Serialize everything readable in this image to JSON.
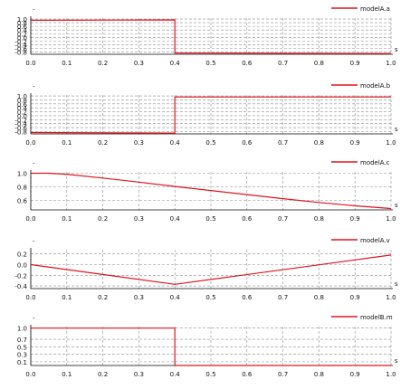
{
  "chart_data": [
    {
      "type": "line",
      "y_unit": "-",
      "x_unit": "s",
      "xlim": [
        0.0,
        1.0
      ],
      "ylim": [
        -0.92,
        1.05
      ],
      "yticks": [
        "1.0",
        "0.8",
        "0.6",
        "0.4",
        "0.2",
        "0.0",
        "-0.2",
        "-0.4",
        "-0.6",
        "-0.8"
      ],
      "ytick_values": [
        1.0,
        0.8,
        0.6,
        0.4,
        0.2,
        0.0,
        -0.2,
        -0.4,
        -0.6,
        -0.8
      ],
      "xticks": [
        "0.0",
        "0.1",
        "0.2",
        "0.3",
        "0.4",
        "0.5",
        "0.6",
        "0.7",
        "0.8",
        "0.9",
        "1.0"
      ],
      "xtick_values": [
        0.0,
        0.1,
        0.2,
        0.3,
        0.4,
        0.5,
        0.6,
        0.7,
        0.8,
        0.9,
        1.0
      ],
      "grid": true,
      "legend_position": "top-right",
      "series": [
        {
          "name": "modelA.a",
          "color": "#e0141e",
          "x": [
            0.0,
            0.4,
            0.4,
            1.0
          ],
          "y": [
            0.93,
            0.95,
            -0.85,
            -0.88
          ]
        }
      ]
    },
    {
      "type": "line",
      "y_unit": "-",
      "x_unit": "s",
      "xlim": [
        0.0,
        1.0
      ],
      "ylim": [
        -0.92,
        1.05
      ],
      "yticks": [
        "1.0",
        "0.8",
        "0.6",
        "0.4",
        "0.2",
        "0.0",
        "-0.2",
        "-0.4",
        "-0.6",
        "-0.8"
      ],
      "ytick_values": [
        1.0,
        0.8,
        0.6,
        0.4,
        0.2,
        0.0,
        -0.2,
        -0.4,
        -0.6,
        -0.8
      ],
      "xticks": [
        "0.0",
        "0.1",
        "0.2",
        "0.3",
        "0.4",
        "0.5",
        "0.6",
        "0.7",
        "0.8",
        "0.9",
        "1.0"
      ],
      "xtick_values": [
        0.0,
        0.1,
        0.2,
        0.3,
        0.4,
        0.5,
        0.6,
        0.7,
        0.8,
        0.9,
        1.0
      ],
      "grid": true,
      "legend_position": "top-right",
      "series": [
        {
          "name": "modelA.b",
          "color": "#e0141e",
          "x": [
            0.0,
            0.4,
            0.4,
            1.0
          ],
          "y": [
            -0.85,
            -0.88,
            0.95,
            0.95
          ]
        }
      ]
    },
    {
      "type": "line",
      "y_unit": "-",
      "x_unit": "s",
      "xlim": [
        0.0,
        1.0
      ],
      "ylim": [
        0.46,
        1.02
      ],
      "yticks": [
        "1.0",
        "0.8",
        "0.6"
      ],
      "ytick_values": [
        1.0,
        0.8,
        0.6
      ],
      "xticks": [
        "0.0",
        "0.1",
        "0.2",
        "0.3",
        "0.4",
        "0.5",
        "0.6",
        "0.7",
        "0.8",
        "0.9",
        "1.0"
      ],
      "xtick_values": [
        0.0,
        0.1,
        0.2,
        0.3,
        0.4,
        0.5,
        0.6,
        0.7,
        0.8,
        0.9,
        1.0
      ],
      "grid": true,
      "legend_position": "top-right",
      "series": [
        {
          "name": "modelA.c",
          "color": "#e0141e",
          "x": [
            0.0,
            0.05,
            0.1,
            0.2,
            0.3,
            0.4,
            0.5,
            0.6,
            0.7,
            0.8,
            0.9,
            1.0
          ],
          "y": [
            1.0,
            1.0,
            0.985,
            0.93,
            0.87,
            0.805,
            0.745,
            0.685,
            0.625,
            0.57,
            0.52,
            0.48
          ]
        }
      ]
    },
    {
      "type": "line",
      "y_unit": "-",
      "x_unit": "s",
      "xlim": [
        0.0,
        1.0
      ],
      "ylim": [
        -0.45,
        0.28
      ],
      "yticks": [
        "0.2",
        "0.0",
        "-0.2",
        "-0.4"
      ],
      "ytick_values": [
        0.2,
        0.0,
        -0.2,
        -0.4
      ],
      "xticks": [
        "0.0",
        "0.1",
        "0.2",
        "0.3",
        "0.4",
        "0.5",
        "0.6",
        "0.7",
        "0.8",
        "0.9",
        "1.0"
      ],
      "xtick_values": [
        0.0,
        0.1,
        0.2,
        0.3,
        0.4,
        0.5,
        0.6,
        0.7,
        0.8,
        0.9,
        1.0
      ],
      "grid": true,
      "legend_position": "top-right",
      "series": [
        {
          "name": "modelA.v",
          "color": "#e0141e",
          "x": [
            0.0,
            0.4,
            1.0
          ],
          "y": [
            0.0,
            -0.37,
            0.18
          ]
        }
      ]
    },
    {
      "type": "line",
      "y_unit": "-",
      "x_unit": "s",
      "xlim": [
        0.0,
        1.0
      ],
      "ylim": [
        0.0,
        1.04
      ],
      "yticks": [
        "1.0",
        "0.7",
        "0.5",
        "0.3",
        "0.1"
      ],
      "ytick_values": [
        1.0,
        0.7,
        0.5,
        0.3,
        0.1
      ],
      "xticks": [
        "0.0",
        "0.1",
        "0.2",
        "0.3",
        "0.4",
        "0.5",
        "0.6",
        "0.7",
        "0.8",
        "0.9",
        "1.0"
      ],
      "xtick_values": [
        0.0,
        0.1,
        0.2,
        0.3,
        0.4,
        0.5,
        0.6,
        0.7,
        0.8,
        0.9,
        1.0
      ],
      "grid": true,
      "legend_position": "top-right",
      "series": [
        {
          "name": "modelB.m",
          "color": "#e0141e",
          "x": [
            0.0,
            0.4,
            0.4,
            1.0
          ],
          "y": [
            1.0,
            1.0,
            0.0,
            0.0
          ]
        }
      ]
    }
  ]
}
